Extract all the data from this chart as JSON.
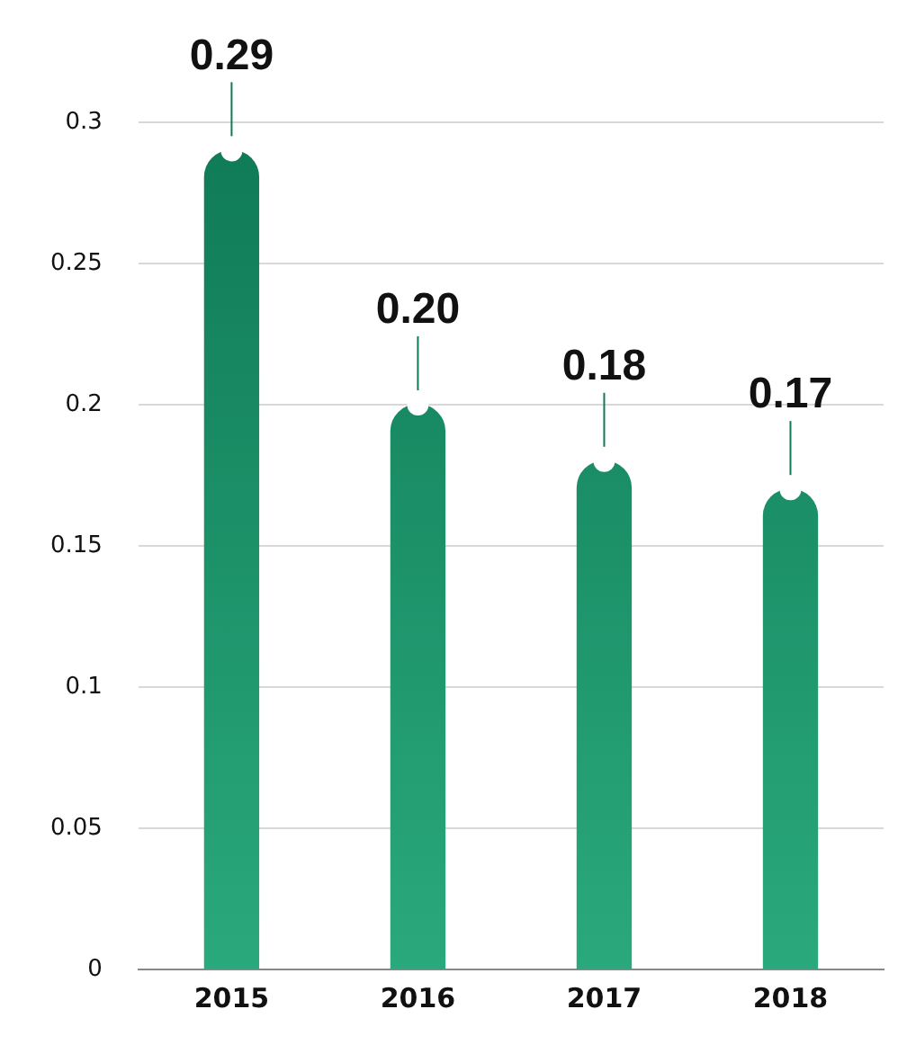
{
  "chart_data": {
    "type": "bar",
    "categories": [
      "2015",
      "2016",
      "2017",
      "2018"
    ],
    "series": [
      {
        "color": "#0f7a56",
        "values": [
          0.29,
          0.2,
          0.18,
          0.17
        ],
        "value_labels": [
          "0.29",
          "0.20",
          "0.18",
          "0.17"
        ]
      },
      {
        "type": "scatter",
        "color": "#ffffff",
        "values": [
          0.29,
          0.2,
          0.18,
          0.17
        ],
        "marker": "circle"
      }
    ],
    "ylim": [
      0,
      0.3
    ],
    "yticks": [
      0,
      0.05,
      0.1,
      0.15,
      0.2,
      0.25,
      0.3
    ],
    "grid": "y"
  }
}
